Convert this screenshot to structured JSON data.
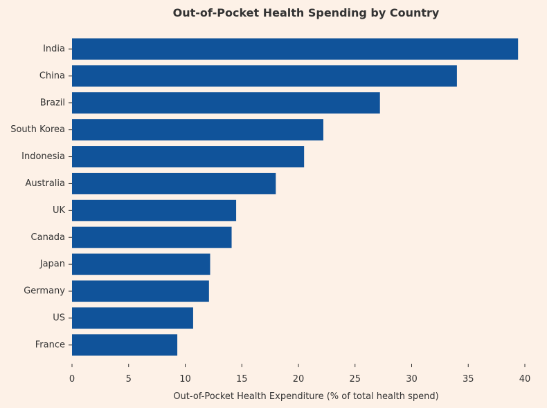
{
  "chart_data": {
    "type": "bar",
    "orientation": "horizontal",
    "title": "Out-of-Pocket Health Spending by Country",
    "xlabel": "Out-of-Pocket Health Expenditure (% of total health spend)",
    "ylabel": "",
    "categories": [
      "India",
      "China",
      "Brazil",
      "South Korea",
      "Indonesia",
      "Australia",
      "UK",
      "Canada",
      "Japan",
      "Germany",
      "US",
      "France"
    ],
    "values": [
      39.4,
      34.0,
      27.2,
      22.2,
      20.5,
      18.0,
      14.5,
      14.1,
      12.2,
      12.1,
      10.7,
      9.3
    ],
    "xlim": [
      0,
      40
    ],
    "xticks": [
      0,
      5,
      10,
      15,
      20,
      25,
      30,
      35,
      40
    ],
    "xtick_labels": [
      "0",
      "5",
      "10",
      "15",
      "20",
      "25",
      "30",
      "35",
      "40"
    ],
    "grid": false,
    "bar_color": "#10539a",
    "background_color": "#fdf1e7"
  }
}
